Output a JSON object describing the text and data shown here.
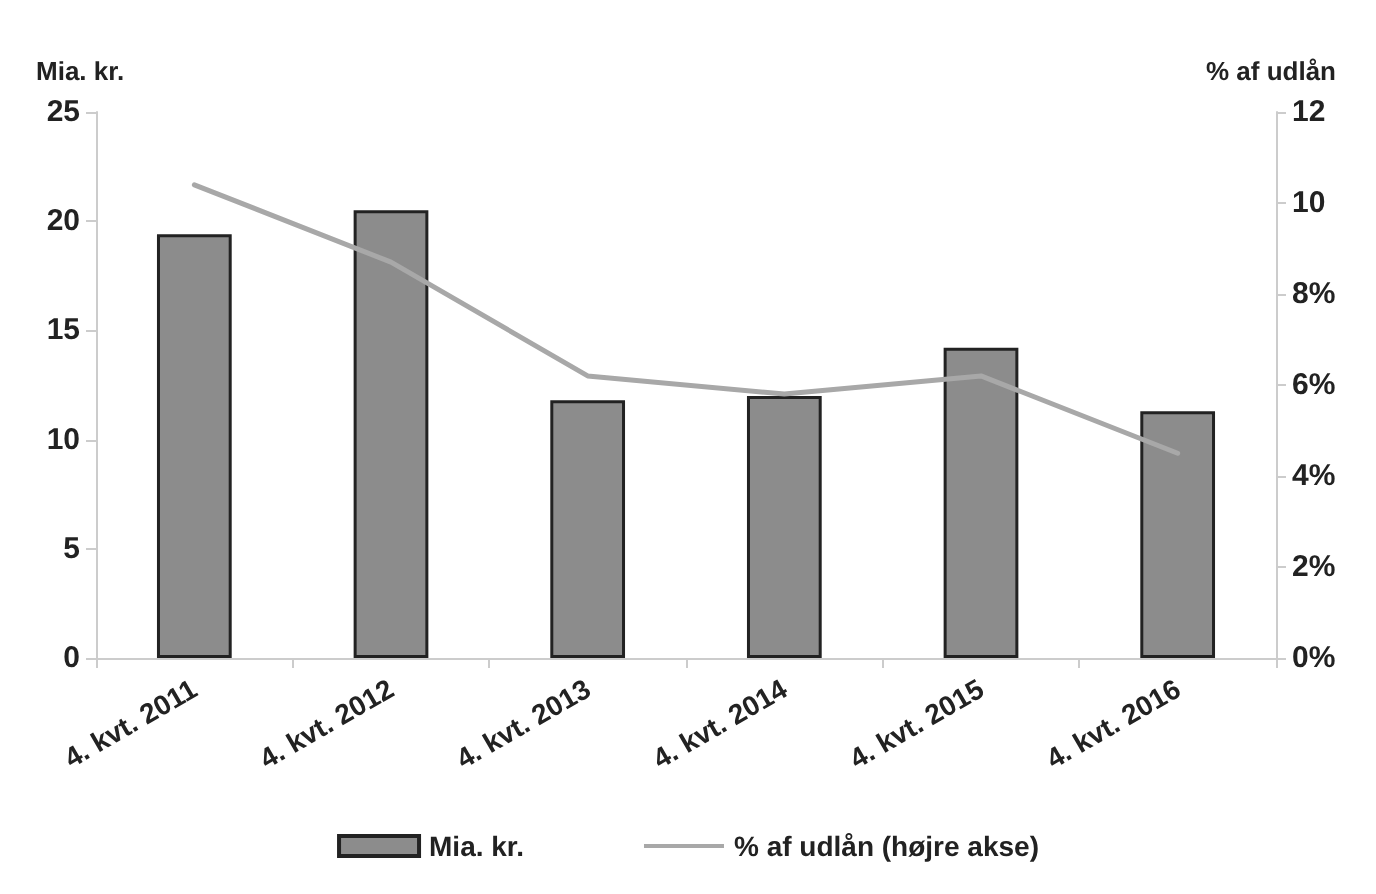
{
  "chart_data": {
    "type": "bar",
    "ylabel": "Mia. kr.",
    "y2label": "% af udlån",
    "categories": [
      "4. kvt. 2011",
      "4. kvt. 2012",
      "4. kvt. 2013",
      "4. kvt. 2014",
      "4. kvt. 2015",
      "4. kvt. 2016"
    ],
    "series": [
      {
        "name": "Mia. kr.",
        "color": "#8c8c8c",
        "values": [
          19.4,
          20.5,
          11.8,
          12.0,
          14.2,
          11.3
        ]
      },
      {
        "name": "% af udlån (højre akse)",
        "type": "line",
        "axis": "y2",
        "color": "#a8a8a8",
        "values": [
          10.4,
          8.7,
          6.2,
          5.8,
          6.2,
          4.5
        ]
      }
    ],
    "ylim": [
      0,
      25
    ],
    "yticks": [
      0,
      5,
      10,
      15,
      20,
      25
    ],
    "y2lim": [
      0,
      12
    ],
    "y2ticks": [
      {
        "value": 0,
        "label": "0%"
      },
      {
        "value": 2,
        "label": "2%"
      },
      {
        "value": 4,
        "label": "4%"
      },
      {
        "value": 6,
        "label": "6%"
      },
      {
        "value": 8,
        "label": "8%"
      },
      10,
      12
    ],
    "grid": false,
    "legend": "bottom",
    "marker": "none",
    "line_style": "solid"
  }
}
